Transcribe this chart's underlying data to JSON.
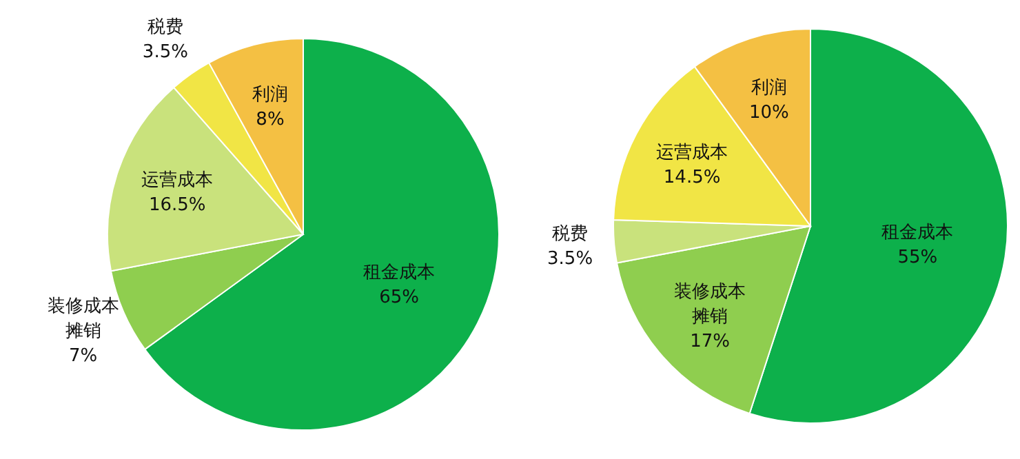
{
  "chart_data": [
    {
      "type": "pie",
      "categories": [
        "租金成本",
        "装修成本摊销",
        "运营成本",
        "税费",
        "利润"
      ],
      "values": [
        65,
        7,
        16.5,
        3.5,
        8
      ],
      "value_labels": [
        "65%",
        "7%",
        "16.5%",
        "3.5%",
        "8%"
      ],
      "colors": [
        "#0db04b",
        "#8fce4f",
        "#c9e27c",
        "#f1e545",
        "#f4c043"
      ]
    },
    {
      "type": "pie",
      "categories": [
        "租金成本",
        "装修成本摊销",
        "税费",
        "运营成本",
        "利润"
      ],
      "values": [
        55,
        17,
        3.5,
        14.5,
        10
      ],
      "value_labels": [
        "55%",
        "17%",
        "3.5%",
        "14.5%",
        "10%"
      ],
      "colors": [
        "#0db04b",
        "#8fce4f",
        "#c9e27c",
        "#f1e545",
        "#f4c043"
      ]
    }
  ]
}
